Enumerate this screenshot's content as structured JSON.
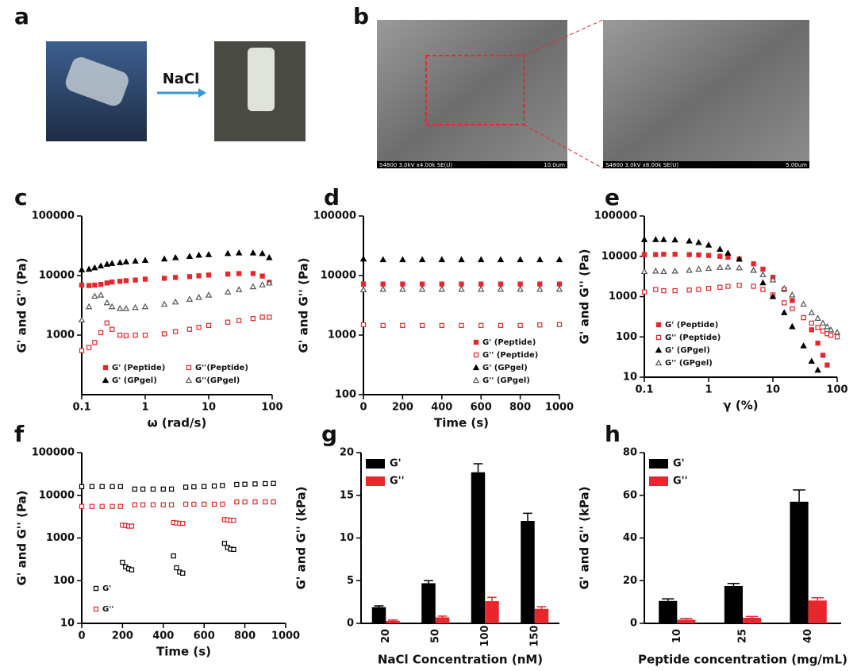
{
  "photos": {
    "a": {
      "label": "a",
      "arrow_text": "NaCl"
    },
    "b": {
      "label": "b",
      "sem": [
        {
          "info": "S4800 3.0kV x4.00k SE(U)",
          "scale": "10.0um"
        },
        {
          "info": "S4800 3.0kV x8.00k SE(U)",
          "scale": "5.00um"
        }
      ]
    }
  },
  "chart_data": [
    {
      "type": "scatter",
      "label": "c",
      "xlabel": "ω (rad/s)",
      "ylabel": "G' and G'' (Pa)",
      "xscale": "log",
      "yscale": "log",
      "xlim": [
        0.1,
        100
      ],
      "xticks": [
        0.1,
        1,
        10,
        100
      ],
      "ylim": [
        100,
        100000
      ],
      "yticks": [
        1000,
        10000,
        100000
      ],
      "legend": "lower right",
      "legend_columns": 2,
      "x": [
        0.1,
        0.13,
        0.16,
        0.2,
        0.25,
        0.3,
        0.4,
        0.5,
        0.7,
        1,
        2,
        3,
        5,
        7,
        10,
        20,
        30,
        50,
        70,
        90
      ],
      "series": [
        {
          "name": "G' (Peptide)",
          "color": "#e8262b",
          "marker": "square",
          "filled": true,
          "values": [
            6900,
            6800,
            6900,
            7100,
            7500,
            7800,
            8000,
            8200,
            8400,
            8700,
            9000,
            9300,
            9600,
            9900,
            10200,
            10600,
            10800,
            10800,
            9800,
            7700
          ]
        },
        {
          "name": "G''(Peptide)",
          "color": "#e8262b",
          "marker": "square",
          "filled": false,
          "values": [
            550,
            620,
            750,
            1100,
            1600,
            1250,
            1000,
            980,
            1000,
            1000,
            1050,
            1150,
            1250,
            1350,
            1450,
            1650,
            1750,
            1900,
            2000,
            2000
          ]
        },
        {
          "name": "G' (GPgel)",
          "color": "#000000",
          "marker": "triangle",
          "filled": true,
          "values": [
            12500,
            12800,
            13500,
            14500,
            15500,
            16000,
            16500,
            17000,
            17500,
            18000,
            19000,
            20000,
            21000,
            22000,
            22500,
            23500,
            24000,
            24000,
            23500,
            20000
          ]
        },
        {
          "name": "G''(GPgel)",
          "color": "#555555",
          "marker": "triangle",
          "filled": false,
          "values": [
            1800,
            3000,
            4500,
            4700,
            3500,
            3000,
            2800,
            2800,
            2900,
            3000,
            3300,
            3600,
            4000,
            4300,
            4700,
            5300,
            5800,
            6500,
            7000,
            7500
          ]
        }
      ]
    },
    {
      "type": "scatter",
      "label": "d",
      "xlabel": "Time (s)",
      "ylabel": "G' and G'' (Pa)",
      "yscale": "log",
      "xlim": [
        0,
        1000
      ],
      "xticks": [
        0,
        200,
        400,
        600,
        800,
        1000
      ],
      "ylim": [
        100,
        100000
      ],
      "yticks": [
        100,
        1000,
        10000,
        100000
      ],
      "legend": "lower right",
      "legend_columns": 1,
      "x": [
        0,
        100,
        200,
        300,
        400,
        500,
        600,
        700,
        800,
        900,
        1000
      ],
      "series": [
        {
          "name": "G' (Peptide)",
          "color": "#e8262b",
          "marker": "square",
          "filled": true,
          "values": [
            7200,
            7200,
            7200,
            7200,
            7200,
            7200,
            7200,
            7200,
            7200,
            7200,
            7200
          ]
        },
        {
          "name": "G'' (Peptide)",
          "color": "#e8262b",
          "marker": "square",
          "filled": false,
          "values": [
            1500,
            1450,
            1450,
            1450,
            1450,
            1450,
            1450,
            1450,
            1450,
            1480,
            1500
          ]
        },
        {
          "name": "G' (GPgel)",
          "color": "#000000",
          "marker": "triangle",
          "filled": true,
          "values": [
            19000,
            18500,
            18500,
            18500,
            18500,
            18500,
            18500,
            18500,
            18500,
            18500,
            18500
          ]
        },
        {
          "name": "G'' (GPgel)",
          "color": "#555555",
          "marker": "triangle",
          "filled": false,
          "values": [
            5800,
            5900,
            5900,
            5900,
            5900,
            5900,
            5900,
            5900,
            5900,
            5900,
            5900
          ]
        }
      ]
    },
    {
      "type": "scatter",
      "label": "e",
      "xlabel": "γ  (%)",
      "ylabel": "G' and G'' (Pa)",
      "xscale": "log",
      "yscale": "log",
      "xlim": [
        0.1,
        100
      ],
      "xticks": [
        0.1,
        1,
        10,
        100
      ],
      "ylim": [
        10,
        100000
      ],
      "yticks": [
        10,
        100,
        1000,
        10000,
        100000
      ],
      "legend": "lower left",
      "legend_columns": 1,
      "x": [
        0.1,
        0.15,
        0.2,
        0.3,
        0.5,
        0.7,
        1,
        1.5,
        2,
        3,
        5,
        7,
        10,
        15,
        20,
        30,
        40,
        50,
        60,
        70,
        80,
        100
      ],
      "series": [
        {
          "name": "G' (Peptide)",
          "color": "#e8262b",
          "marker": "square",
          "filled": true,
          "values": [
            11000,
            11000,
            11200,
            11200,
            11000,
            10800,
            10500,
            10000,
            9500,
            8500,
            6500,
            4800,
            3000,
            1500,
            800,
            300,
            150,
            70,
            35,
            20,
            null,
            null
          ]
        },
        {
          "name": "G'' (Peptide)",
          "color": "#e8262b",
          "marker": "square",
          "filled": false,
          "values": [
            1300,
            1500,
            1400,
            1400,
            1450,
            1500,
            1600,
            1700,
            1800,
            1900,
            1800,
            1500,
            1100,
            700,
            500,
            300,
            220,
            170,
            140,
            120,
            110,
            100
          ]
        },
        {
          "name": "G' (GPgel)",
          "color": "#000000",
          "marker": "triangle",
          "filled": true,
          "values": [
            26000,
            26000,
            26000,
            25500,
            24000,
            22000,
            19000,
            15000,
            12000,
            8500,
            4500,
            2200,
            1000,
            400,
            180,
            60,
            25,
            15,
            null,
            null,
            null,
            null
          ]
        },
        {
          "name": "G'' (GPgel)",
          "color": "#555555",
          "marker": "triangle",
          "filled": false,
          "values": [
            4200,
            4300,
            4200,
            4300,
            4500,
            4800,
            5000,
            5300,
            5400,
            5200,
            4500,
            3500,
            2600,
            1600,
            1100,
            650,
            400,
            290,
            220,
            180,
            150,
            130
          ]
        }
      ]
    },
    {
      "type": "scatter",
      "label": "f",
      "xlabel": "Time (s)",
      "ylabel": "G' and G'' (Pa)",
      "yscale": "log",
      "xlim": [
        0,
        1000
      ],
      "xticks": [
        0,
        200,
        400,
        600,
        800,
        1000
      ],
      "ylim": [
        10,
        100000
      ],
      "yticks": [
        10,
        100,
        1000,
        10000,
        100000
      ],
      "legend": "lower left",
      "legend_columns": 1,
      "x": [
        0,
        50,
        100,
        150,
        190,
        200,
        215,
        230,
        245,
        260,
        300,
        350,
        400,
        440,
        450,
        465,
        480,
        495,
        510,
        550,
        600,
        650,
        690,
        700,
        715,
        730,
        745,
        760,
        800,
        850,
        900,
        940
      ],
      "series": [
        {
          "name": "G'",
          "color": "#000000",
          "marker": "square",
          "filled": false,
          "values": [
            16000,
            16000,
            16000,
            16000,
            16000,
            270,
            210,
            190,
            180,
            14000,
            14000,
            14000,
            14000,
            14000,
            380,
            200,
            160,
            150,
            15500,
            15800,
            16000,
            16500,
            17000,
            750,
            600,
            550,
            540,
            18000,
            18200,
            18500,
            18800,
            19000
          ]
        },
        {
          "name": "G''",
          "color": "#e8262b",
          "marker": "square",
          "filled": false,
          "values": [
            5500,
            5500,
            5500,
            5500,
            5500,
            2000,
            1950,
            1900,
            1900,
            6000,
            6000,
            6000,
            6000,
            6000,
            2300,
            2250,
            2200,
            2200,
            6200,
            6200,
            6200,
            6200,
            6200,
            2700,
            2650,
            2600,
            2600,
            7000,
            7000,
            7000,
            7000,
            7000
          ]
        }
      ]
    },
    {
      "type": "bar",
      "label": "g",
      "xlabel": "NaCl Concentration (nM)",
      "ylabel": "G' and G'' (kPa)",
      "ylim": [
        0,
        20
      ],
      "yticks": [
        0,
        5,
        10,
        15,
        20
      ],
      "legend": "upper left",
      "legend_columns": 1,
      "categories": [
        "20",
        "50",
        "100",
        "150"
      ],
      "series": [
        {
          "name": "G'",
          "color": "#000000",
          "values": [
            1.9,
            4.7,
            17.7,
            12.0
          ],
          "errors": [
            0.15,
            0.3,
            1.0,
            0.9
          ]
        },
        {
          "name": "G''",
          "color": "#e8262b",
          "values": [
            0.3,
            0.7,
            2.6,
            1.7
          ],
          "errors": [
            0.1,
            0.15,
            0.45,
            0.25
          ]
        }
      ]
    },
    {
      "type": "bar",
      "label": "h",
      "xlabel": "Peptide concentration (mg/mL)",
      "ylabel": "G' and G'' (kPa)",
      "ylim": [
        0,
        80
      ],
      "yticks": [
        0,
        20,
        40,
        60,
        80
      ],
      "legend": "upper left",
      "legend_columns": 1,
      "categories": [
        "10",
        "25",
        "40"
      ],
      "series": [
        {
          "name": "G'",
          "color": "#000000",
          "values": [
            10.5,
            17.5,
            57
          ],
          "errors": [
            1,
            1.2,
            5.5
          ]
        },
        {
          "name": "G''",
          "color": "#e8262b",
          "values": [
            1.7,
            2.6,
            10.7
          ],
          "errors": [
            0.6,
            0.6,
            1.3
          ]
        }
      ]
    }
  ]
}
